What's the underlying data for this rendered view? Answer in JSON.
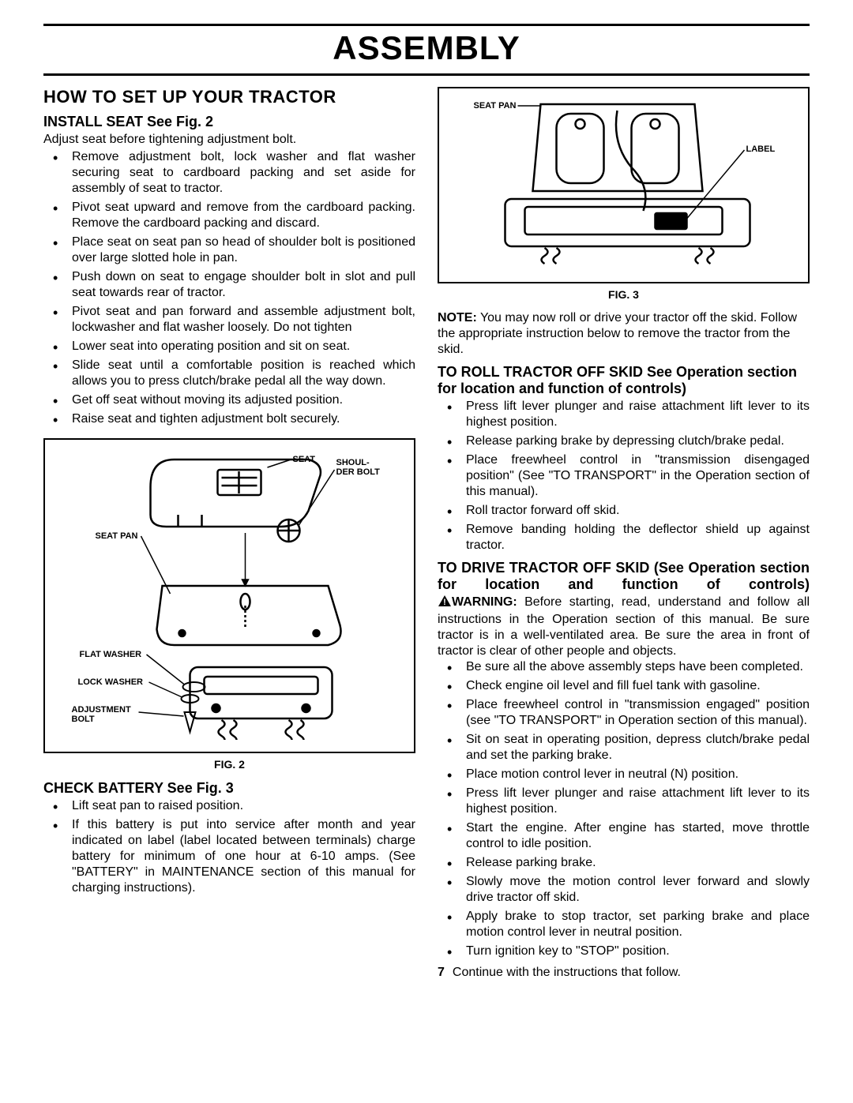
{
  "page": {
    "title": "ASSEMBLY",
    "number": "7"
  },
  "left": {
    "h2": "HOW TO SET UP YOUR TRACTOR",
    "install_seat": {
      "heading": "INSTALL SEAT See Fig. 2",
      "intro": "Adjust seat before tightening adjustment bolt.",
      "items": [
        "Remove adjustment bolt, lock washer and flat washer securing seat to cardboard packing and set aside for assembly of seat to tractor.",
        "Pivot seat upward and remove from the cardboard packing. Remove the cardboard packing and discard.",
        "Place seat on seat pan so head of shoulder bolt is positioned over large slotted hole in pan.",
        "Push down on seat to engage shoulder bolt in slot and pull seat towards rear of tractor.",
        "Pivot seat and pan forward and assemble adjustment bolt, lockwasher and flat washer loosely. Do not tighten",
        "Lower seat into operating position and sit on seat.",
        "Slide seat until a comfortable position is reached which allows you to press clutch/brake pedal all the way down.",
        "Get off seat without moving its adjusted position.",
        "Raise seat and tighten adjustment bolt securely."
      ]
    },
    "fig2": {
      "caption": "FIG. 2",
      "labels": {
        "seat": "SEAT",
        "shoulder_bolt": "SHOUL-\nDER BOLT",
        "seat_pan": "SEAT PAN",
        "flat_washer": "FLAT WASHER",
        "lock_washer": "LOCK WASHER",
        "adjustment_bolt": "ADJUSTMENT\nBOLT"
      }
    },
    "check_battery": {
      "heading": "CHECK BATTERY See Fig. 3",
      "items": [
        "Lift seat pan to raised position.",
        "If this battery is put into service after month and year indicated on label (label located between terminals) charge battery for minimum of one hour at 6-10 amps. (See \"BATTERY\" in MAINTENANCE  section of this manual for charging instructions)."
      ]
    }
  },
  "right": {
    "fig3": {
      "caption": "FIG. 3",
      "labels": {
        "seat_pan": "SEAT PAN",
        "label": "LABEL"
      }
    },
    "note": {
      "bold": "NOTE:",
      "text": " You may now roll or drive your tractor off the skid. Follow the appropriate instruction below to remove the tractor from the skid."
    },
    "roll_off": {
      "heading": "TO ROLL TRACTOR OFF SKID  See Operation section for location and function of controls)",
      "items": [
        "Press lift lever plunger and raise attachment lift lever to its highest position.",
        "Release parking brake by depressing clutch/brake pedal.",
        "Place freewheel control in \"transmission disengaged position\" (See \"TO TRANSPORT\" in the Operation section of this manual).",
        "Roll tractor forward off skid.",
        "Remove banding holding the deflector shield up against tractor."
      ]
    },
    "drive_off": {
      "heading": "TO DRIVE TRACTOR OFF SKID (See Operation section for location and function of controls)",
      "warning_bold": "WARNING:",
      "warning_text": " Before starting, read, understand and follow all instructions in the Operation section of this manual. Be sure tractor is in a well-ventilated area. Be sure the area in front of tractor is clear of other people and objects.",
      "items": [
        "Be sure all the above assembly steps have been completed.",
        "Check engine oil level and fill fuel tank with gasoline.",
        "Place freewheel control in \"transmission engaged\" position (see \"TO TRANSPORT\" in Operation section of this manual).",
        "Sit on seat in operating position, depress clutch/brake pedal and set the parking brake.",
        "Place motion control lever in neutral (N) position.",
        "Press lift lever plunger and raise attachment lift lever to its highest position.",
        "Start the engine. After engine has started, move throttle control to idle position.",
        "Release parking brake.",
        "Slowly move the motion control lever forward and slowly drive tractor off skid.",
        "Apply brake to stop tractor, set parking brake and place motion control lever in neutral position.",
        "Turn ignition key to \"STOP\" position."
      ]
    },
    "continue": "Continue with the instructions that follow."
  }
}
